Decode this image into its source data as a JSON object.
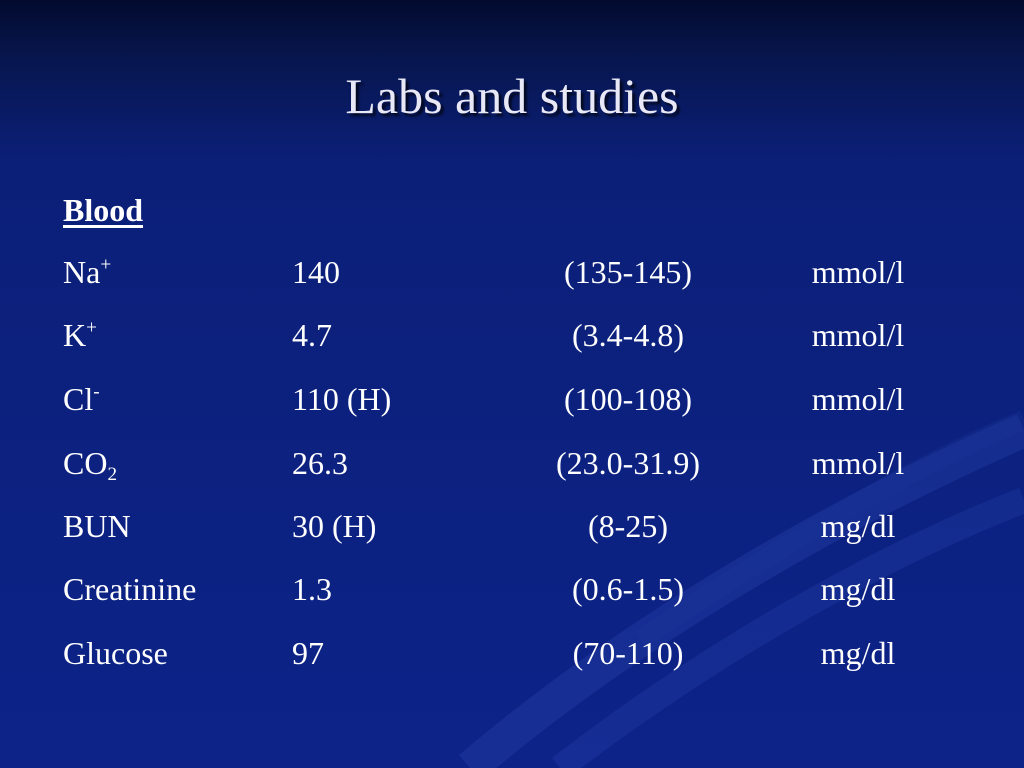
{
  "slide": {
    "title": "Labs and studies",
    "section_heading": "Blood"
  },
  "labs": [
    {
      "name": "Na",
      "sup": "+",
      "sub": "",
      "value": "140",
      "range": "(135-145)",
      "unit": "mmol/l"
    },
    {
      "name": "K",
      "sup": "+",
      "sub": "",
      "value": "4.7",
      "range": "(3.4-4.8)",
      "unit": "mmol/l"
    },
    {
      "name": "Cl",
      "sup": "-",
      "sub": "",
      "value": "110 (H)",
      "range": "(100-108)",
      "unit": "mmol/l"
    },
    {
      "name": "CO",
      "sup": "",
      "sub": "2",
      "value": "26.3",
      "range": "(23.0-31.9)",
      "unit": "mmol/l"
    },
    {
      "name": "BUN",
      "sup": "",
      "sub": "",
      "value": "30 (H)",
      "range": "(8-25)",
      "unit": "mg/dl"
    },
    {
      "name": "Creatinine",
      "sup": "",
      "sub": "",
      "value": "1.3",
      "range": "(0.6-1.5)",
      "unit": "mg/dl"
    },
    {
      "name": "Glucose",
      "sup": "",
      "sub": "",
      "value": "97",
      "range": "(70-110)",
      "unit": "mg/dl"
    }
  ],
  "colors": {
    "background": "#0d2388",
    "background_top": "#020a2e",
    "text": "#ffffff",
    "title_text": "#e8e8f6"
  }
}
